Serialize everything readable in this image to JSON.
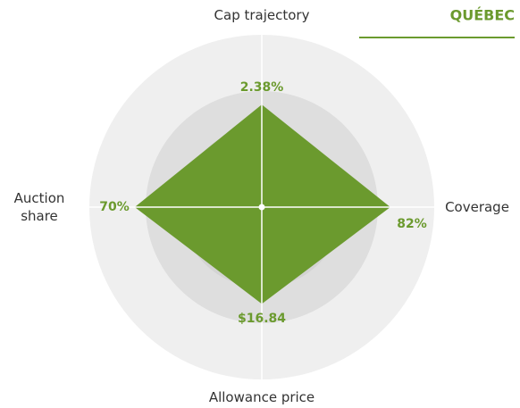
{
  "chart_data": {
    "type": "radar",
    "title": "QUÉBEC",
    "categories": [
      "Cap trajectory",
      "Coverage",
      "Allowance price",
      "Auction share"
    ],
    "values": [
      2.38,
      82,
      16.84,
      70
    ],
    "value_labels": [
      "2.38%",
      "82%",
      "$16.84",
      "70%"
    ],
    "rlims": [
      [
        0,
        4
      ],
      [
        0,
        110
      ],
      [
        0,
        30
      ],
      [
        0,
        95
      ]
    ],
    "color": "#6b9a2e"
  }
}
